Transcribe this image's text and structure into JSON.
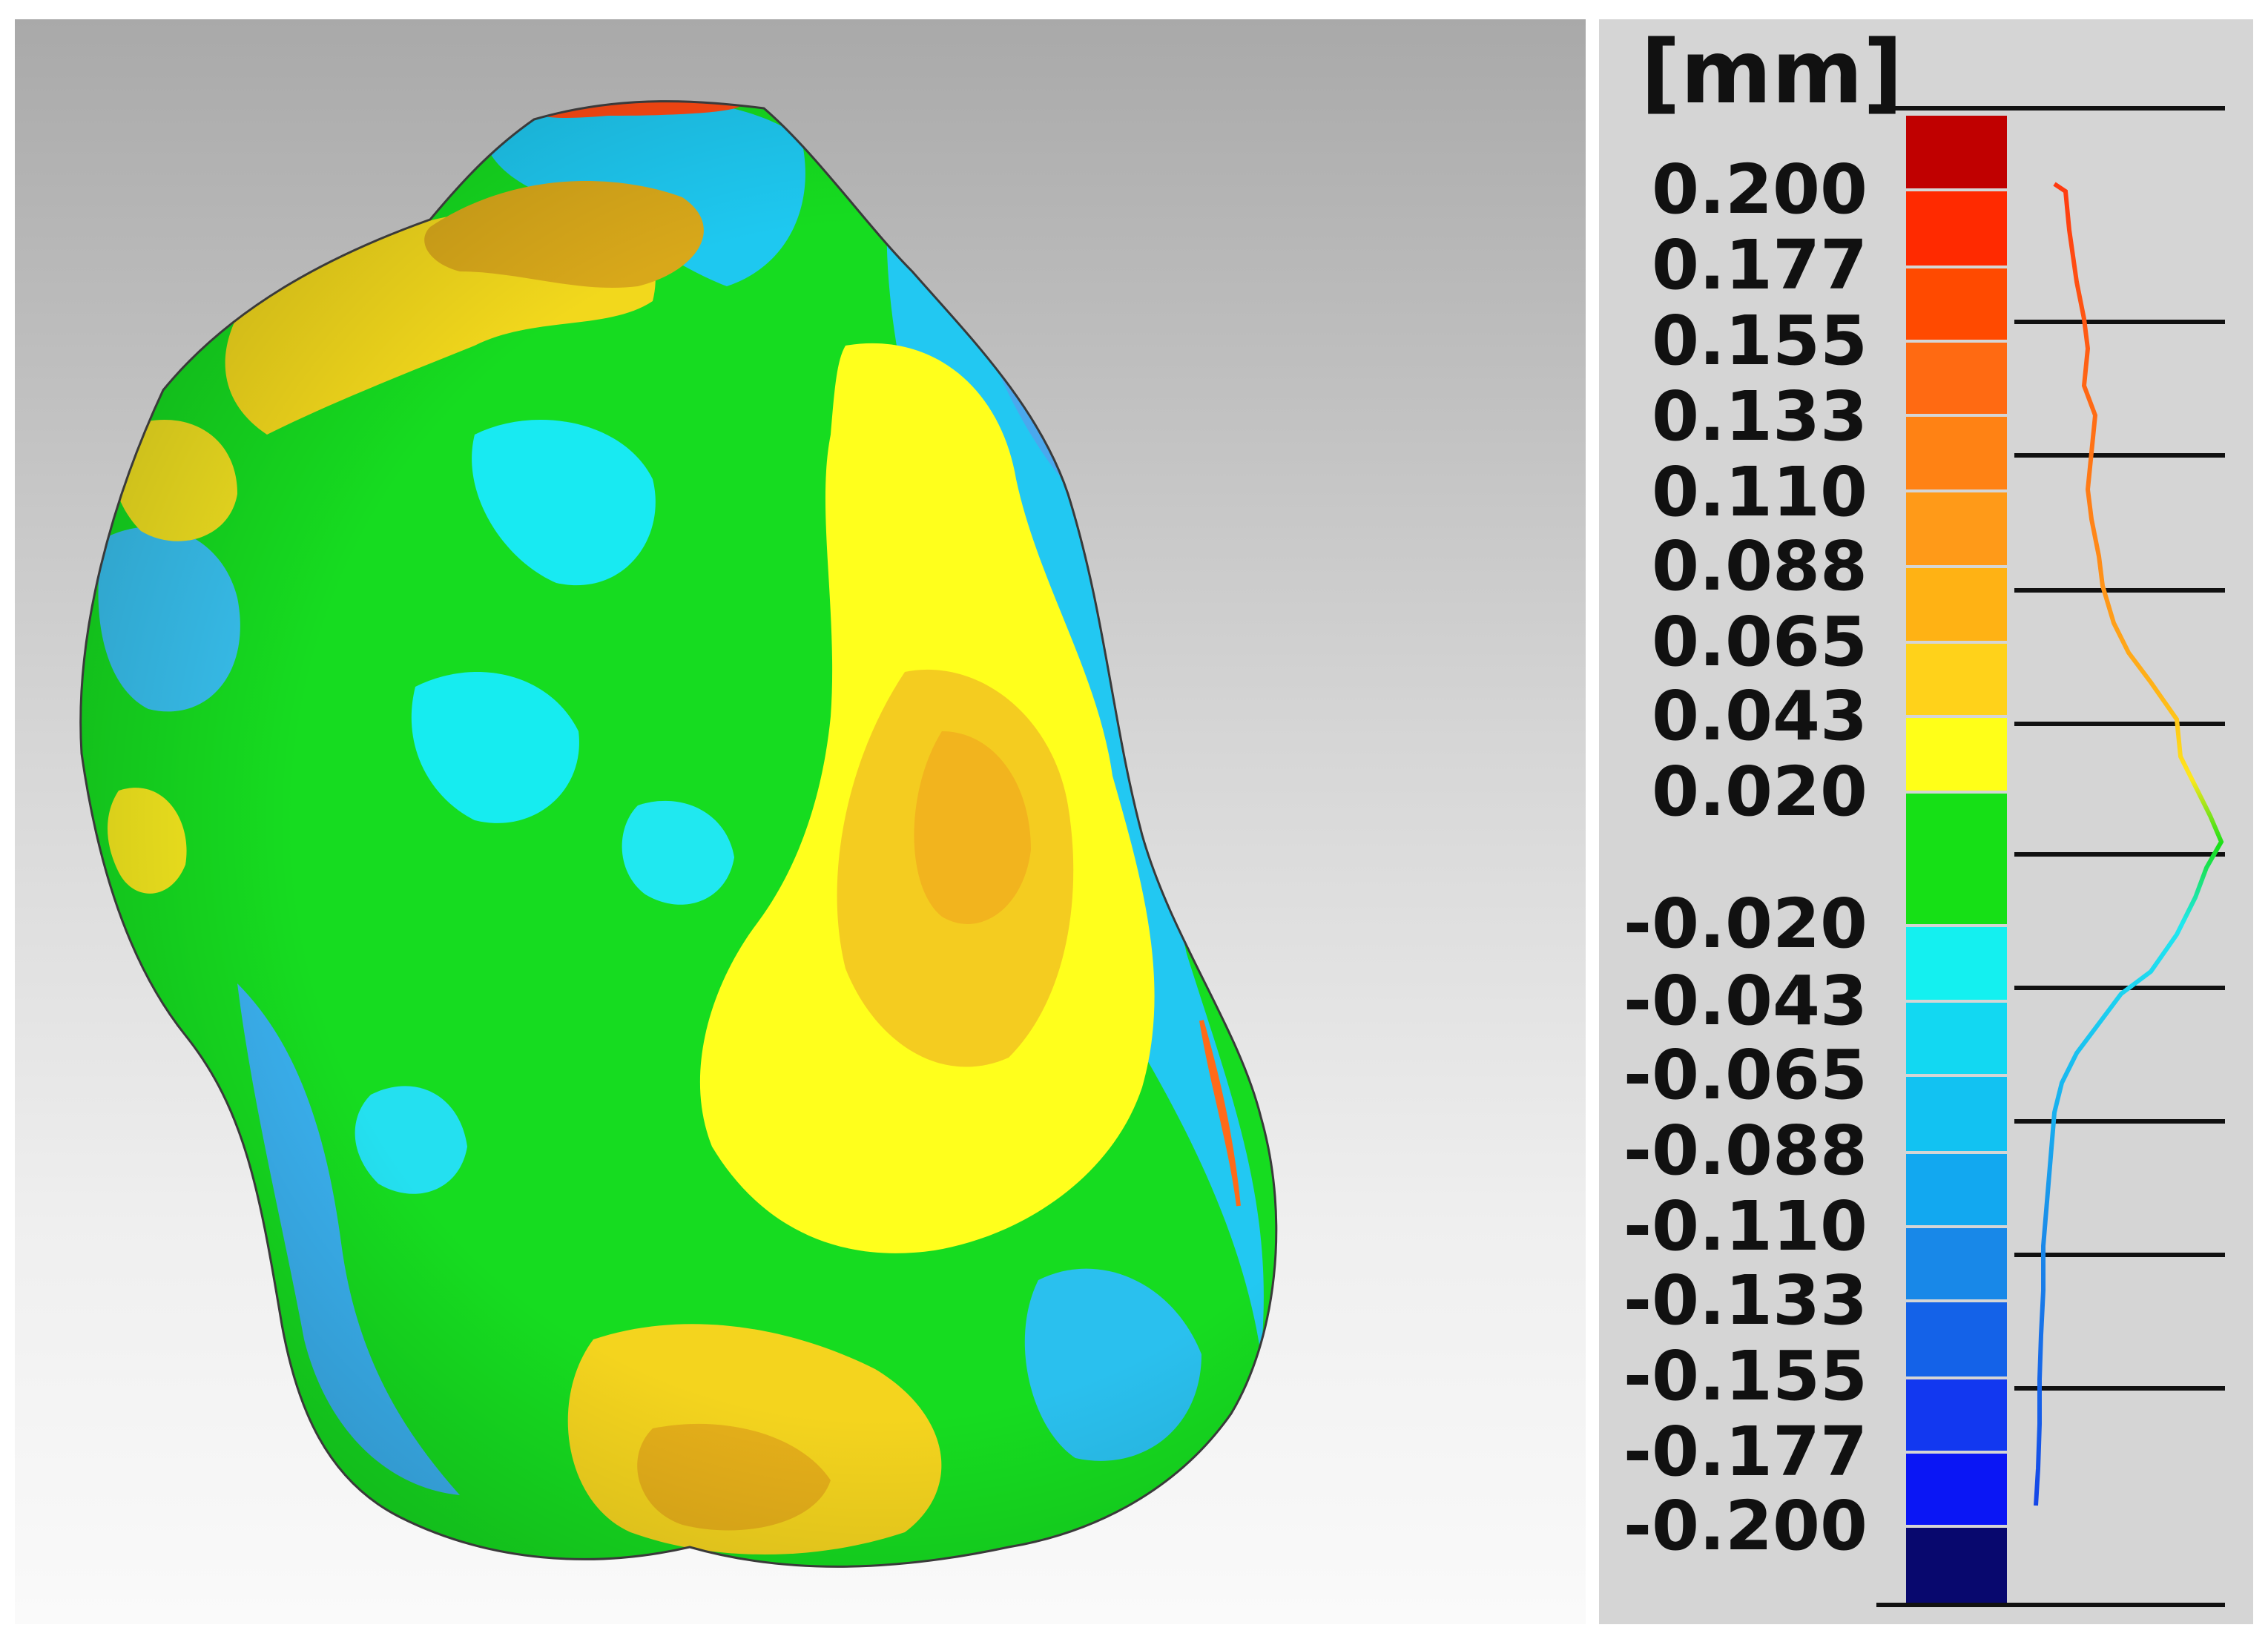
{
  "legend": {
    "unit": "[mm]",
    "labels": [
      "0.200",
      "0.177",
      "0.155",
      "0.133",
      "0.110",
      "0.088",
      "0.065",
      "0.043",
      "0.020",
      "-0.020",
      "-0.043",
      "-0.065",
      "-0.088",
      "-0.110",
      "-0.133",
      "-0.155",
      "-0.177",
      "-0.200"
    ],
    "colors": [
      "#c00000",
      "#ff2a00",
      "#ff4a00",
      "#ff6a12",
      "#ff8214",
      "#ff9a18",
      "#ffb214",
      "#ffd21a",
      "#ffff18",
      "#16e016",
      "#14f0f0",
      "#12d8f2",
      "#12c2f2",
      "#12a8f0",
      "#1888e8",
      "#1462e8",
      "#1238f0",
      "#0a16f5",
      "#08086e"
    ]
  }
}
